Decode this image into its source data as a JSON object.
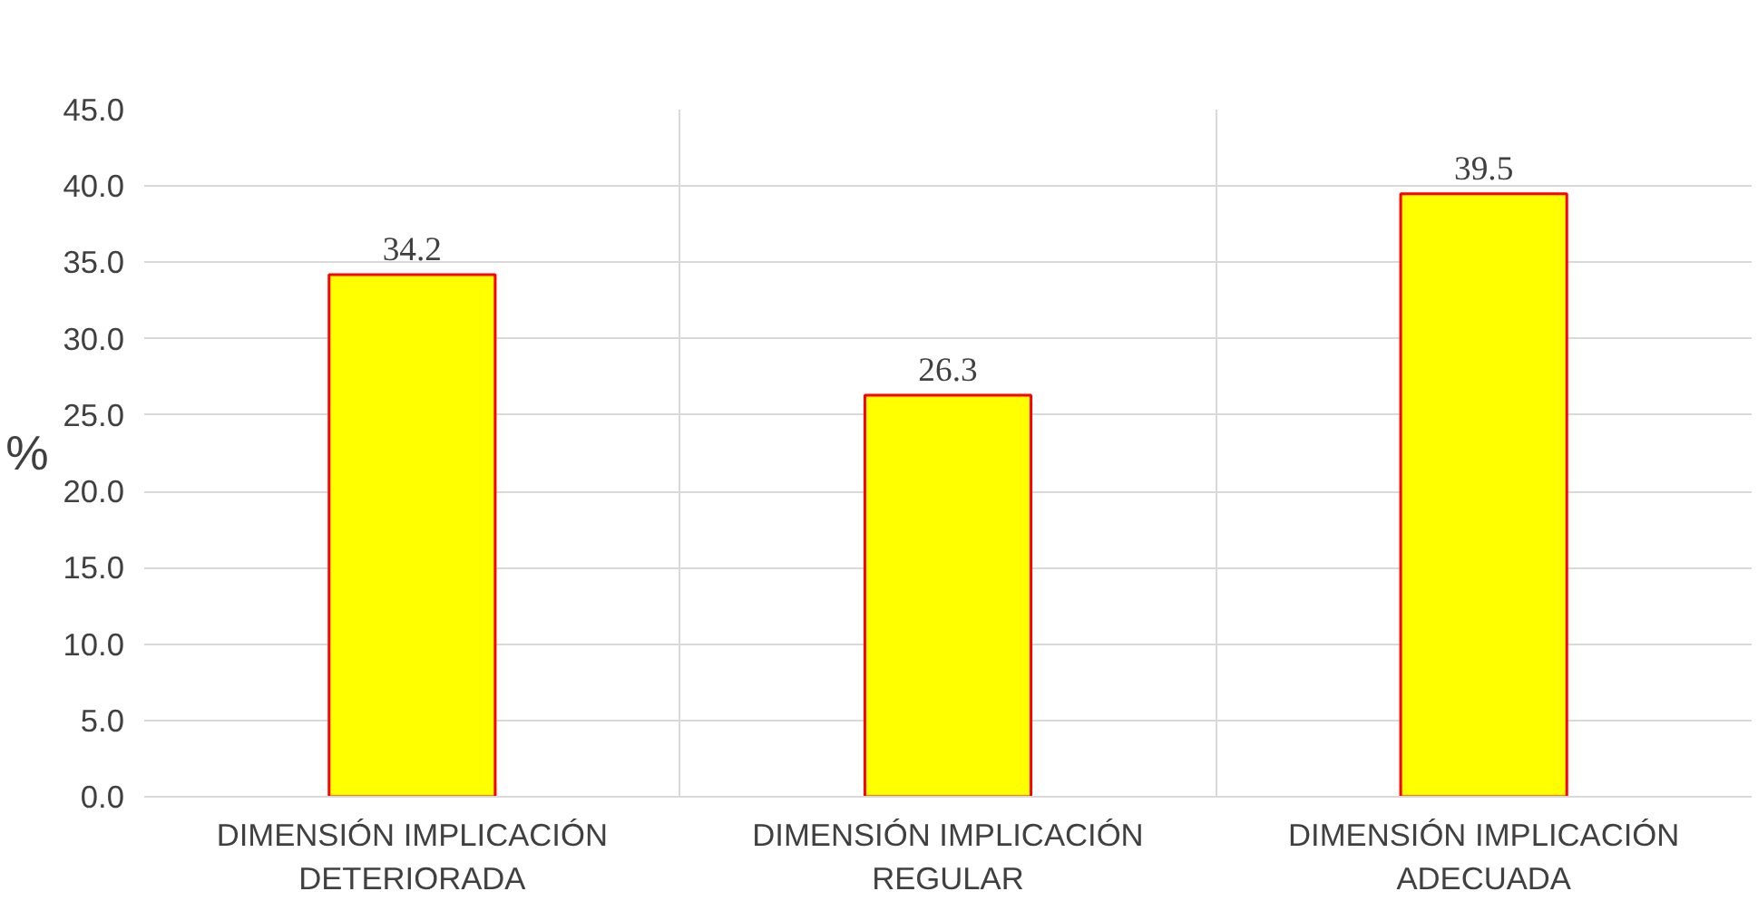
{
  "chart_data": {
    "type": "bar",
    "categories": [
      "DIMENSIÓN IMPLICACIÓN DETERIORADA",
      "DIMENSIÓN IMPLICACIÓN REGULAR",
      "DIMENSIÓN IMPLICACIÓN ADECUADA"
    ],
    "values": [
      34.2,
      26.3,
      39.5
    ],
    "color": "#ffff00",
    "ylabel": "%",
    "ylim": [
      0,
      45
    ],
    "yticks": [
      {
        "value": 0,
        "label": "0.0"
      },
      {
        "value": 5,
        "label": "5.0"
      },
      {
        "value": 10,
        "label": "10.0"
      },
      {
        "value": 15,
        "label": "15.0"
      },
      {
        "value": 20,
        "label": "20.0"
      },
      {
        "value": 25,
        "label": "25.0"
      },
      {
        "value": 30,
        "label": "30.0"
      },
      {
        "value": 35,
        "label": "35.0"
      },
      {
        "value": 40,
        "label": "40.0"
      },
      {
        "value": 45,
        "label": "45.0"
      }
    ],
    "grid": true,
    "data_labels": true
  }
}
